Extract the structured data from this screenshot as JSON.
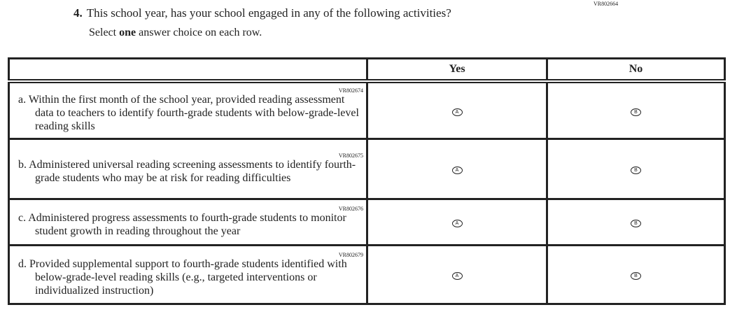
{
  "question": {
    "code": "VR802664",
    "number": "4.",
    "text": "This school year, has your school engaged in any of the following activities?",
    "instruction_pre": "Select ",
    "instruction_bold": "one",
    "instruction_post": " answer choice on each row."
  },
  "columns": [
    "Yes",
    "No"
  ],
  "rows": [
    {
      "code": "VR802674",
      "letter": "a.",
      "text": "Within the first month of the school year, provided reading assessment data to teachers to identify fourth-grade students with below-grade-level reading skills",
      "options": [
        "A",
        "B"
      ]
    },
    {
      "code": "VR802675",
      "letter": "b.",
      "text": "Administered universal reading screening assessments to identify fourth-grade students who may be at risk for reading difficulties",
      "options": [
        "A",
        "B"
      ]
    },
    {
      "code": "VR802676",
      "letter": "c.",
      "text": "Administered progress assessments to fourth-grade students to monitor student growth in reading throughout the year",
      "options": [
        "A",
        "B"
      ]
    },
    {
      "code": "VR802679",
      "letter": "d.",
      "text": "Provided supplemental support to fourth-grade students identified with below-grade-level reading skills (e.g., targeted interventions or individualized instruction)",
      "options": [
        "A",
        "B"
      ]
    }
  ]
}
